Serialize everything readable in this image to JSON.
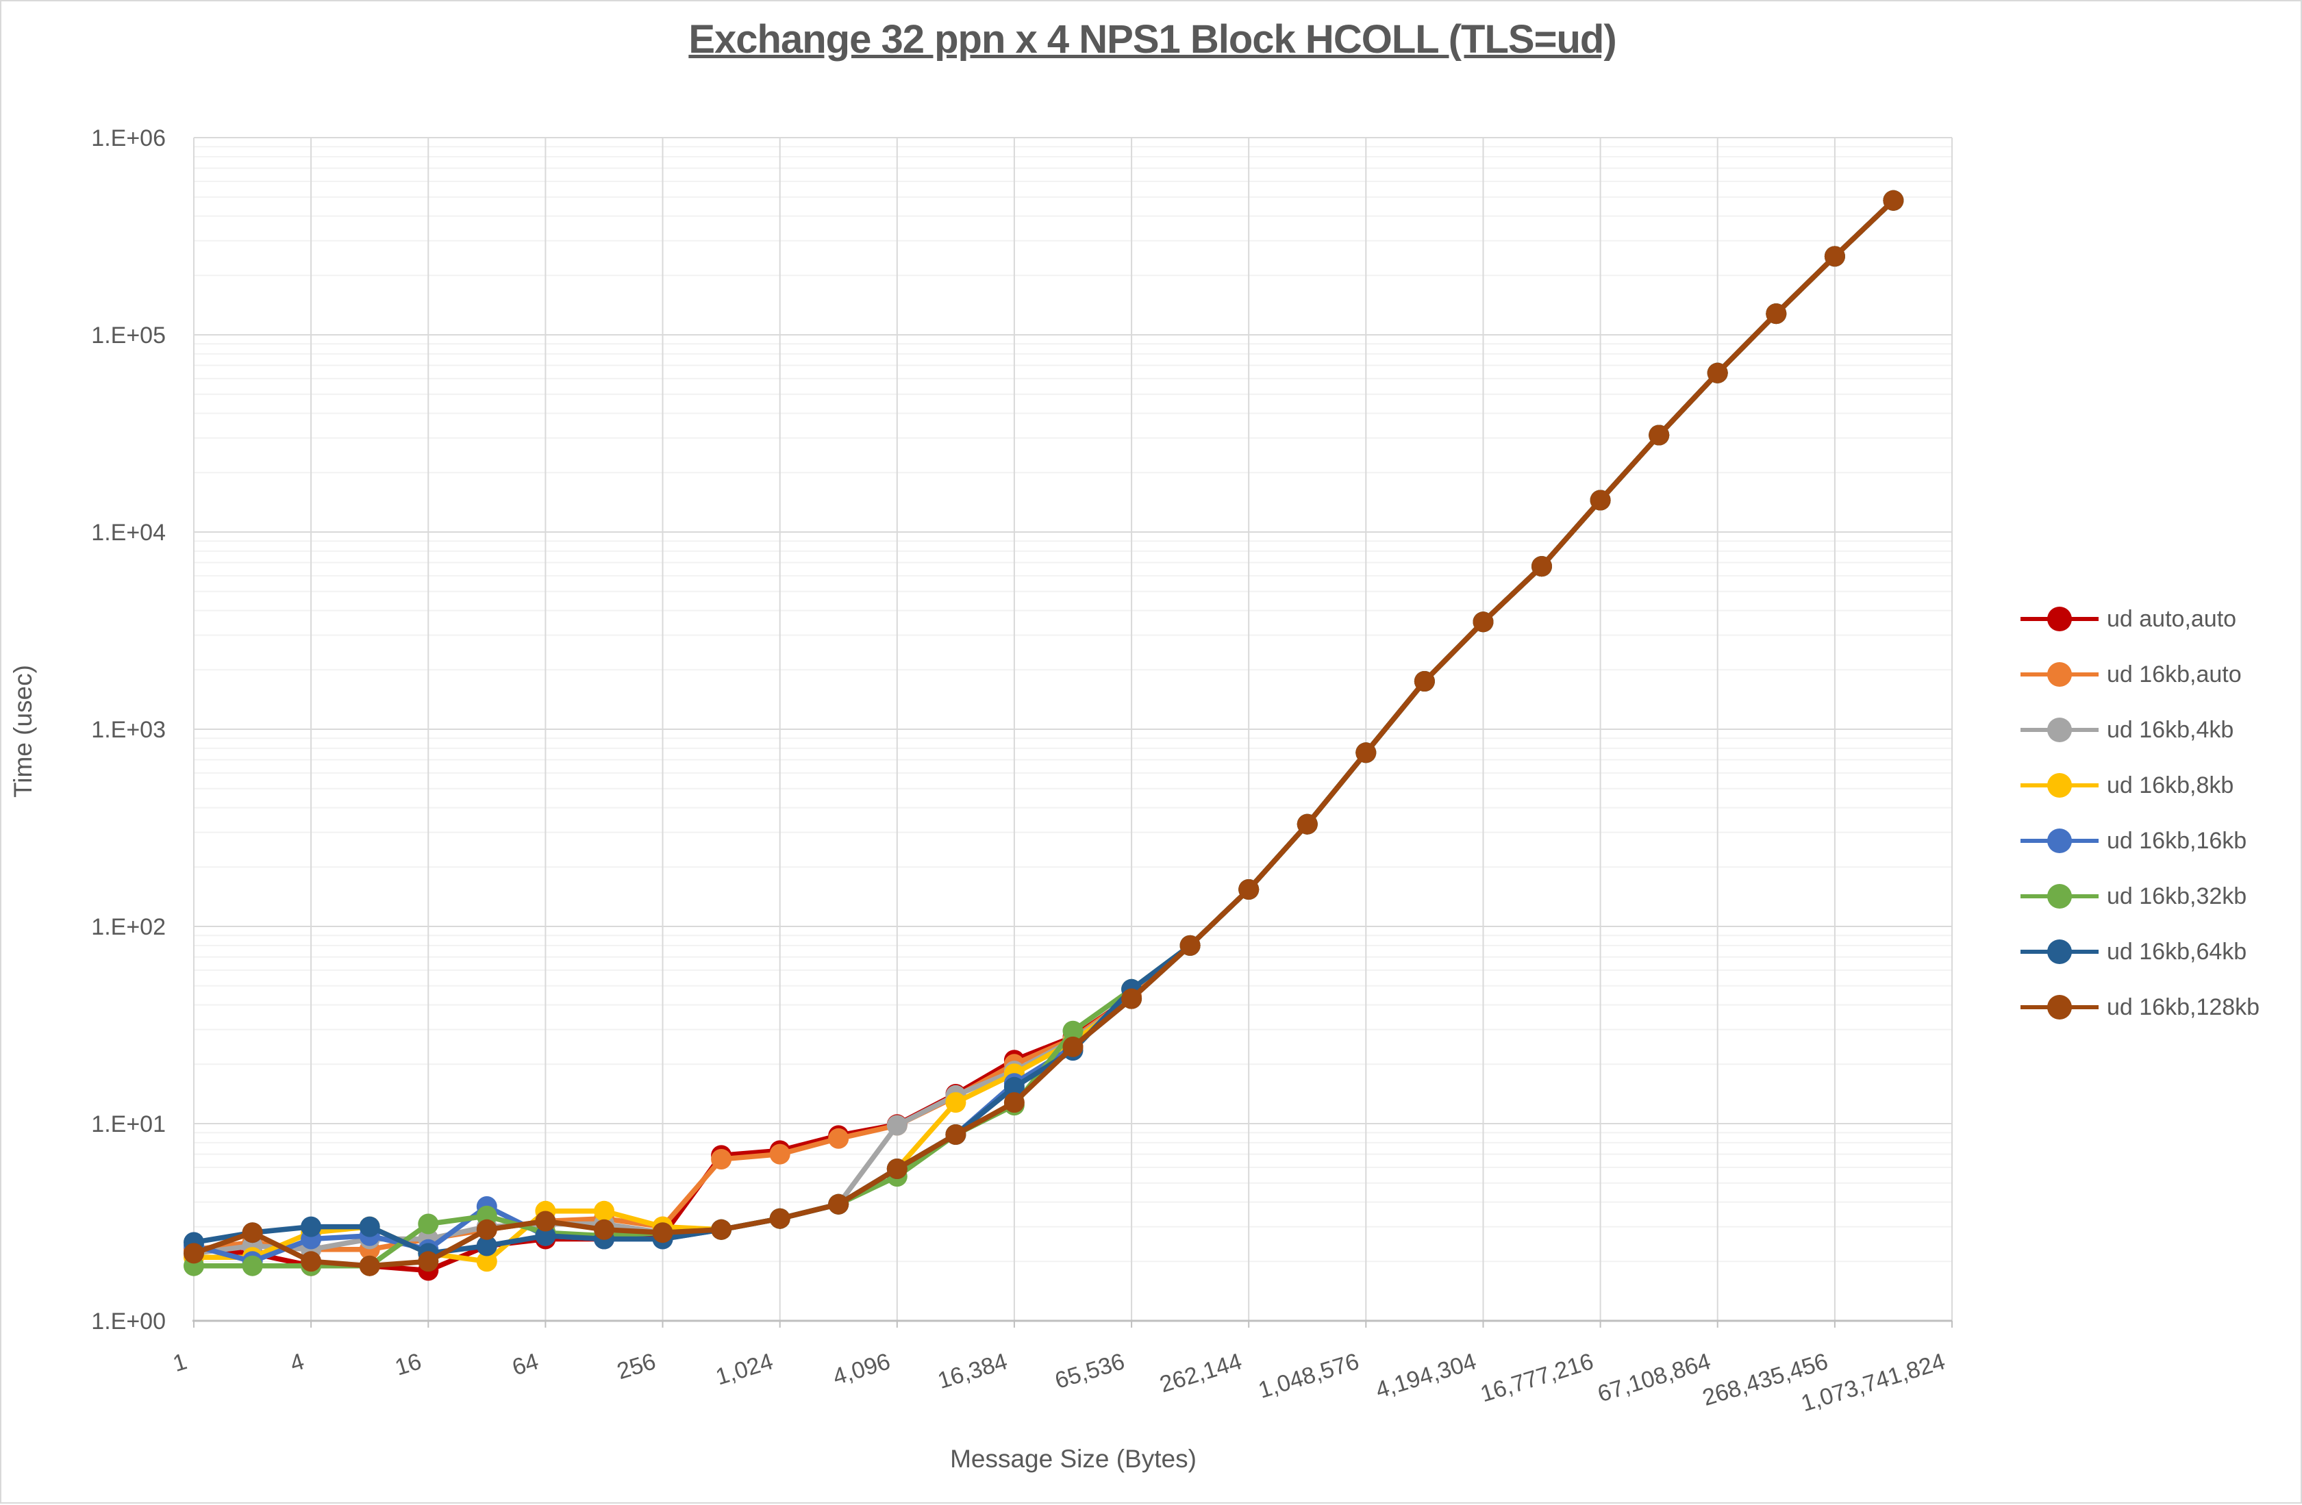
{
  "chart_data": {
    "type": "line",
    "title": "Exchange 32 ppn x 4 NPS1 Block HCOLL (TLS=ud)",
    "xlabel": "Message Size (Bytes)",
    "ylabel": "Time (usec)",
    "x_scale": "log2",
    "y_scale": "log10",
    "ylim": [
      1,
      1000000
    ],
    "y_tick_labels": [
      "1.E+00",
      "1.E+01",
      "1.E+02",
      "1.E+03",
      "1.E+04",
      "1.E+05",
      "1.E+06"
    ],
    "x_tick_labels": [
      "1",
      "4",
      "16",
      "64",
      "256",
      "1,024",
      "4,096",
      "16,384",
      "65,536",
      "262,144",
      "1,048,576",
      "4,194,304",
      "16,777,216",
      "67,108,864",
      "268,435,456",
      "1,073,741,824"
    ],
    "x_axis_max": 1073741824,
    "grid": true,
    "legend_position": "right",
    "axis_text_color": "#595959",
    "major_grid_color": "#d9d9d9",
    "minor_grid_color": "#f2f2f2",
    "axis_line_color": "#bfbfbf",
    "x_categories": [
      1,
      2,
      4,
      8,
      16,
      32,
      64,
      128,
      256,
      512,
      1024,
      2048,
      4096,
      8192,
      16384,
      32768,
      65536,
      131072,
      262144,
      524288,
      1048576,
      2097152,
      4194304,
      8388608,
      16777216,
      33554432,
      67108864,
      134217728,
      268435456,
      536870912
    ],
    "series": [
      {
        "name": "ud auto,auto",
        "color": "#C00000",
        "values": [
          2.3,
          2.2,
          1.9,
          1.9,
          1.8,
          2.4,
          2.6,
          2.6,
          2.7,
          6.9,
          7.3,
          8.7,
          9.9,
          14.1,
          21.0,
          27.5,
          44,
          80,
          154,
          330,
          760,
          1750,
          3500,
          6700,
          14500,
          31000,
          64000,
          128000,
          250000,
          480000
        ]
      },
      {
        "name": "ud 16kb,auto",
        "color": "#ED7D31",
        "values": [
          2.3,
          2.5,
          2.3,
          2.3,
          2.6,
          2.9,
          3.2,
          3.3,
          3.0,
          6.6,
          7.0,
          8.4,
          9.8,
          13.7,
          20.0,
          27.0,
          44,
          80,
          154,
          330,
          760,
          1750,
          3500,
          6700,
          14500,
          31000,
          64000,
          128000,
          250000,
          480000
        ]
      },
      {
        "name": "ud 16kb,4kb",
        "color": "#A5A5A5",
        "values": [
          2.2,
          2.4,
          2.3,
          2.6,
          2.6,
          3.0,
          3.1,
          3.1,
          2.8,
          2.9,
          3.3,
          3.9,
          9.8,
          13.9,
          18.5,
          26.5,
          43,
          80,
          154,
          330,
          760,
          1750,
          3500,
          6700,
          14500,
          31000,
          64000,
          128000,
          250000,
          480000
        ]
      },
      {
        "name": "ud 16kb,8kb",
        "color": "#FFC000",
        "values": [
          2.1,
          2.1,
          2.8,
          3.0,
          2.2,
          2.0,
          3.6,
          3.6,
          3.0,
          2.9,
          3.3,
          3.9,
          5.9,
          12.8,
          17.9,
          26.0,
          43,
          80,
          154,
          330,
          760,
          1750,
          3500,
          6700,
          14500,
          31000,
          64000,
          128000,
          250000,
          480000
        ]
      },
      {
        "name": "ud 16kb,16kb",
        "color": "#4472C4",
        "values": [
          2.4,
          2.0,
          2.6,
          2.7,
          2.3,
          3.8,
          2.7,
          2.6,
          2.6,
          2.9,
          3.3,
          3.9,
          5.9,
          8.8,
          16.0,
          24.5,
          43,
          80,
          154,
          330,
          760,
          1750,
          3500,
          6700,
          14500,
          31000,
          64000,
          128000,
          250000,
          480000
        ]
      },
      {
        "name": "ud 16kb,32kb",
        "color": "#70AD47",
        "values": [
          1.9,
          1.9,
          1.9,
          1.9,
          3.1,
          3.4,
          2.8,
          2.7,
          2.8,
          2.9,
          3.3,
          3.9,
          5.4,
          8.8,
          12.4,
          29.5,
          48,
          80,
          154,
          330,
          760,
          1750,
          3500,
          6700,
          14500,
          31000,
          64000,
          128000,
          250000,
          480000
        ]
      },
      {
        "name": "ud 16kb,64kb",
        "color": "#255E91",
        "values": [
          2.5,
          2.8,
          3.0,
          3.0,
          2.2,
          2.4,
          2.7,
          2.6,
          2.6,
          2.9,
          3.3,
          3.9,
          5.9,
          8.8,
          15.3,
          23.5,
          48,
          80,
          154,
          330,
          760,
          1750,
          3500,
          6700,
          14500,
          31000,
          64000,
          128000,
          250000,
          480000
        ]
      },
      {
        "name": "ud 16kb,128kb",
        "color": "#9E480E",
        "values": [
          2.2,
          2.8,
          2.0,
          1.9,
          2.0,
          2.9,
          3.2,
          2.9,
          2.8,
          2.9,
          3.3,
          3.9,
          5.9,
          8.8,
          12.8,
          24.5,
          43,
          80,
          154,
          330,
          760,
          1750,
          3500,
          6700,
          14500,
          31000,
          64000,
          128000,
          250000,
          480000
        ]
      }
    ]
  }
}
